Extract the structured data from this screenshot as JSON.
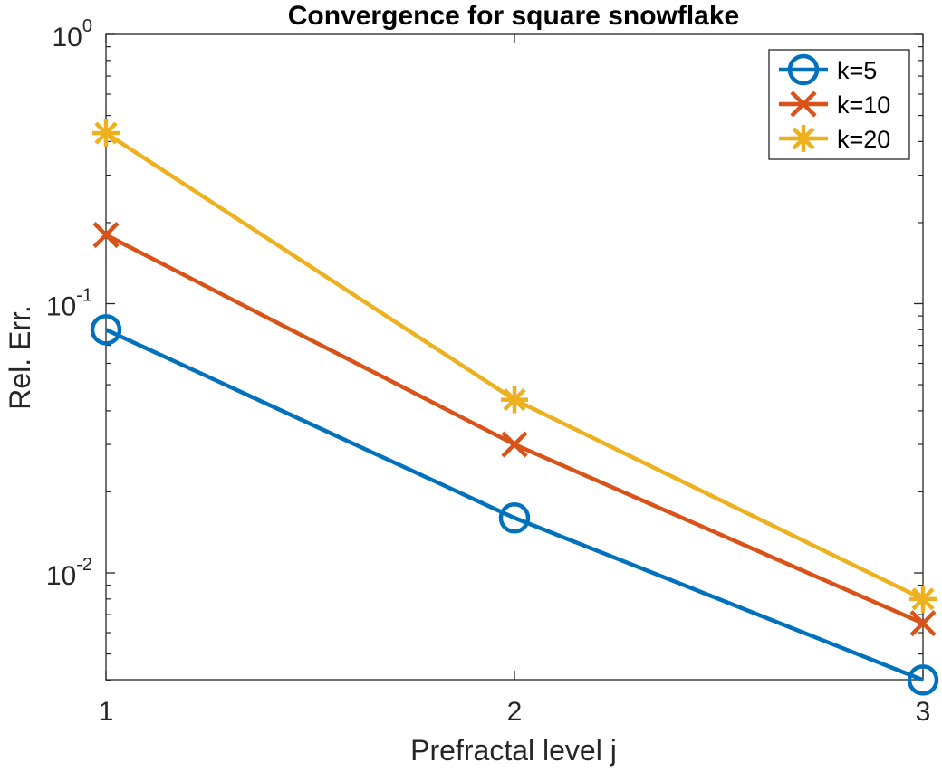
{
  "chart_data": {
    "type": "line",
    "title": "Convergence for square snowflake",
    "xlabel": "Prefractal level j",
    "ylabel": "Rel. Err.",
    "yscale": "log",
    "x": [
      1,
      2,
      3
    ],
    "xlim": [
      1,
      3
    ],
    "ylim": [
      0.004,
      1
    ],
    "x_ticks": [
      "1",
      "2",
      "3"
    ],
    "y_ticks": [
      {
        "base": "10",
        "exp": "-2",
        "value": 0.01
      },
      {
        "base": "10",
        "exp": "-1",
        "value": 0.1
      },
      {
        "base": "10",
        "exp": "0",
        "value": 1
      }
    ],
    "grid": false,
    "legend_position": "top-right",
    "series": [
      {
        "name": "k=5",
        "values": [
          0.08,
          0.016,
          0.004
        ],
        "color": "#0072bd",
        "marker": "circle"
      },
      {
        "name": "k=10",
        "values": [
          0.18,
          0.03,
          0.0065
        ],
        "color": "#d95319",
        "marker": "x"
      },
      {
        "name": "k=20",
        "values": [
          0.43,
          0.044,
          0.008
        ],
        "color": "#edb120",
        "marker": "asterisk"
      }
    ]
  }
}
